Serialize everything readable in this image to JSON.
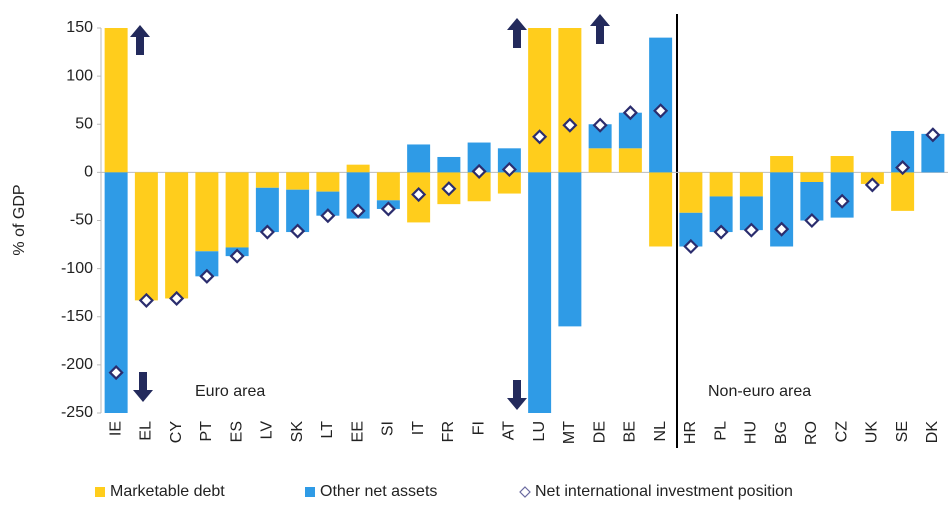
{
  "chart_data": {
    "type": "bar",
    "stacked": true,
    "y_label": "% of GDP",
    "categories": [
      "IE",
      "EL",
      "CY",
      "PT",
      "ES",
      "LV",
      "SK",
      "LT",
      "EE",
      "SI",
      "IT",
      "FR",
      "FI",
      "AT",
      "LU",
      "MT",
      "DE",
      "BE",
      "NL",
      "HR",
      "PL",
      "HU",
      "BG",
      "RO",
      "CZ",
      "UK",
      "SE",
      "DK"
    ],
    "series": [
      {
        "name": "Marketable debt",
        "color": "#ffcd1c",
        "values": [
          150,
          -133,
          -131,
          -82,
          -78,
          -16,
          -18,
          -20,
          8,
          -29,
          -52,
          -33,
          -30,
          -22,
          150,
          150,
          25,
          25,
          -77,
          -42,
          -25,
          -25,
          17,
          -10,
          17,
          -12,
          -40,
          0
        ]
      },
      {
        "name": "Other net assets",
        "color": "#2f9be6",
        "values": [
          -250,
          0,
          0,
          -26,
          -9,
          -46,
          -44,
          -25,
          -48,
          -9,
          29,
          16,
          31,
          25,
          -250,
          -160,
          25,
          37,
          140,
          -35,
          -37,
          -35,
          -77,
          -40,
          -47,
          0,
          43,
          40
        ]
      },
      {
        "name": "Net international investment position",
        "type": "scatter",
        "marker": "diamond",
        "color": "#2b2d6e",
        "values": [
          -208,
          -133,
          -131,
          -108,
          -87,
          -62,
          -61,
          -45,
          -40,
          -38,
          -23,
          -17,
          1,
          3,
          37,
          49,
          49,
          62,
          64,
          -77,
          -62,
          -60,
          -59,
          -50,
          -30,
          -13,
          5,
          39
        ]
      }
    ],
    "annotations": [
      "Euro area",
      "Non-euro area"
    ],
    "ylim": [
      -250,
      150
    ],
    "yticks": [
      -250,
      -200,
      -150,
      -100,
      -50,
      0,
      50,
      100,
      150
    ],
    "grid": false
  }
}
